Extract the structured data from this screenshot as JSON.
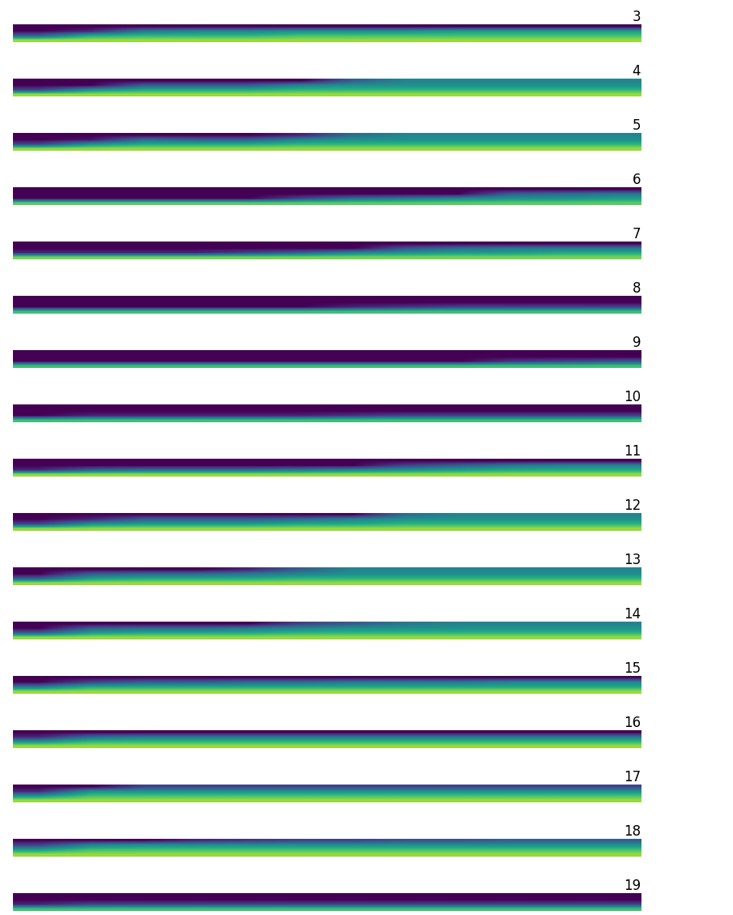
{
  "chart_data": [
    {
      "type": "heatmap",
      "title": "3",
      "tick_labels": false,
      "clim": [
        0,
        1
      ],
      "cells": [
        [
          0,
          0,
          0,
          0,
          0,
          0,
          0,
          0,
          0,
          0,
          0,
          0
        ],
        [
          0,
          0.1,
          0.4,
          0.45,
          0.45,
          0.5,
          0.5,
          0.5,
          0.55,
          0.55,
          0.55,
          0.55
        ],
        [
          0.3,
          0.6,
          0.65,
          0.65,
          0.65,
          0.7,
          0.7,
          0.7,
          0.7,
          0.7,
          0.7,
          0.7
        ],
        [
          0.85,
          0.85,
          0.85,
          0.85,
          0.85,
          0.85,
          0.85,
          0.85,
          0.85,
          0.85,
          0.85,
          0.85
        ]
      ]
    },
    {
      "type": "heatmap",
      "title": "4",
      "tick_labels": false,
      "clim": [
        0,
        1
      ],
      "cells": [
        [
          0,
          0,
          0,
          0,
          0,
          0,
          0.3,
          0.45,
          0.45,
          0.45,
          0.45,
          0.45
        ],
        [
          0,
          0,
          0.3,
          0.3,
          0.3,
          0.45,
          0.5,
          0.5,
          0.5,
          0.5,
          0.5,
          0.5
        ],
        [
          0.2,
          0.5,
          0.6,
          0.6,
          0.6,
          0.65,
          0.65,
          0.65,
          0.65,
          0.65,
          0.65,
          0.65
        ],
        [
          0.85,
          0.85,
          0.85,
          0.85,
          0.85,
          0.85,
          0.85,
          0.85,
          0.85,
          0.85,
          0.85,
          0.85
        ]
      ]
    },
    {
      "type": "heatmap",
      "title": "5",
      "tick_labels": false,
      "clim": [
        0,
        1
      ],
      "cells": [
        [
          0,
          0,
          0,
          0,
          0,
          0.1,
          0.35,
          0.45,
          0.45,
          0.45,
          0.45,
          0.45
        ],
        [
          0,
          0.05,
          0.35,
          0.3,
          0.3,
          0.45,
          0.5,
          0.5,
          0.5,
          0.5,
          0.5,
          0.5
        ],
        [
          0.2,
          0.5,
          0.6,
          0.6,
          0.6,
          0.65,
          0.65,
          0.65,
          0.65,
          0.65,
          0.65,
          0.65
        ],
        [
          0.85,
          0.85,
          0.85,
          0.85,
          0.85,
          0.85,
          0.85,
          0.85,
          0.85,
          0.85,
          0.85,
          0.85
        ]
      ]
    },
    {
      "type": "heatmap",
      "title": "6",
      "tick_labels": false,
      "clim": [
        0,
        1
      ],
      "cells": [
        [
          0,
          0,
          0,
          0,
          0,
          0,
          0,
          0,
          0,
          0,
          0,
          0
        ],
        [
          0,
          0,
          0,
          0,
          0,
          0,
          0,
          0,
          0,
          0.3,
          0.35,
          0.4
        ],
        [
          0,
          0,
          0,
          0,
          0,
          0.2,
          0.35,
          0.4,
          0.45,
          0.5,
          0.5,
          0.55
        ],
        [
          0.75,
          0.75,
          0.75,
          0.75,
          0.75,
          0.75,
          0.75,
          0.75,
          0.75,
          0.75,
          0.75,
          0.75
        ]
      ]
    },
    {
      "type": "heatmap",
      "title": "7",
      "tick_labels": false,
      "clim": [
        0,
        1
      ],
      "cells": [
        [
          0,
          0,
          0,
          0,
          0,
          0,
          0,
          0,
          0,
          0,
          0,
          0
        ],
        [
          0,
          0,
          0,
          0,
          0,
          0,
          0,
          0.25,
          0.35,
          0.4,
          0.4,
          0.4
        ],
        [
          0.1,
          0.1,
          0.1,
          0.1,
          0.2,
          0.3,
          0.45,
          0.5,
          0.55,
          0.55,
          0.6,
          0.6
        ],
        [
          0.8,
          0.8,
          0.8,
          0.8,
          0.8,
          0.8,
          0.8,
          0.8,
          0.8,
          0.8,
          0.8,
          0.8
        ]
      ]
    },
    {
      "type": "heatmap",
      "title": "8",
      "tick_labels": false,
      "clim": [
        0,
        1
      ],
      "cells": [
        [
          0,
          0,
          0,
          0,
          0,
          0,
          0,
          0,
          0,
          0,
          0,
          0
        ],
        [
          0,
          0,
          0,
          0,
          0,
          0,
          0,
          0,
          0,
          0,
          0,
          0
        ],
        [
          0,
          0,
          0,
          0,
          0,
          0,
          0.1,
          0.15,
          0.2,
          0.2,
          0.2,
          0.2
        ],
        [
          0.7,
          0.7,
          0.7,
          0.7,
          0.7,
          0.7,
          0.7,
          0.7,
          0.7,
          0.7,
          0.7,
          0.7
        ]
      ]
    },
    {
      "type": "heatmap",
      "title": "9",
      "tick_labels": false,
      "clim": [
        0,
        1
      ],
      "cells": [
        [
          0,
          0,
          0,
          0,
          0,
          0,
          0,
          0,
          0,
          0,
          0,
          0
        ],
        [
          0,
          0,
          0,
          0,
          0,
          0,
          0,
          0,
          0,
          0,
          0,
          0
        ],
        [
          0,
          0,
          0,
          0,
          0,
          0,
          0,
          0,
          0,
          0.15,
          0.2,
          0.25
        ],
        [
          0.7,
          0.7,
          0.7,
          0.7,
          0.7,
          0.7,
          0.7,
          0.7,
          0.7,
          0.7,
          0.7,
          0.7
        ]
      ]
    },
    {
      "type": "heatmap",
      "title": "10",
      "tick_labels": false,
      "clim": [
        0,
        1
      ],
      "cells": [
        [
          0,
          0,
          0,
          0,
          0,
          0,
          0,
          0,
          0,
          0,
          0,
          0
        ],
        [
          0,
          0,
          0,
          0,
          0,
          0,
          0,
          0,
          0,
          0,
          0,
          0
        ],
        [
          0,
          0.1,
          0.1,
          0.1,
          0.1,
          0.1,
          0.15,
          0.2,
          0.2,
          0.2,
          0.2,
          0.2
        ],
        [
          0.7,
          0.7,
          0.7,
          0.7,
          0.7,
          0.7,
          0.7,
          0.7,
          0.7,
          0.7,
          0.7,
          0.7
        ]
      ]
    },
    {
      "type": "heatmap",
      "title": "11",
      "tick_labels": false,
      "clim": [
        0,
        1
      ],
      "cells": [
        [
          0,
          0,
          0,
          0,
          0,
          0,
          0,
          0,
          0,
          0,
          0,
          0
        ],
        [
          0,
          0,
          0,
          0,
          0,
          0,
          0,
          0.2,
          0.3,
          0.4,
          0.45,
          0.45
        ],
        [
          0.1,
          0.3,
          0.35,
          0.35,
          0.35,
          0.4,
          0.45,
          0.5,
          0.55,
          0.6,
          0.6,
          0.6
        ],
        [
          0.85,
          0.85,
          0.85,
          0.85,
          0.85,
          0.85,
          0.85,
          0.85,
          0.85,
          0.85,
          0.85,
          0.85
        ]
      ]
    },
    {
      "type": "heatmap",
      "title": "12",
      "tick_labels": false,
      "clim": [
        0,
        1
      ],
      "cells": [
        [
          0,
          0,
          0,
          0,
          0,
          0,
          0,
          0.35,
          0.45,
          0.45,
          0.45,
          0.45
        ],
        [
          0,
          0.1,
          0.3,
          0.3,
          0.3,
          0.35,
          0.45,
          0.5,
          0.5,
          0.5,
          0.5,
          0.5
        ],
        [
          0.2,
          0.5,
          0.55,
          0.55,
          0.55,
          0.6,
          0.6,
          0.65,
          0.65,
          0.65,
          0.65,
          0.65
        ],
        [
          0.85,
          0.85,
          0.85,
          0.85,
          0.85,
          0.85,
          0.85,
          0.85,
          0.85,
          0.85,
          0.85,
          0.85
        ]
      ]
    },
    {
      "type": "heatmap",
      "title": "13",
      "tick_labels": false,
      "clim": [
        0,
        1
      ],
      "cells": [
        [
          0,
          0,
          0,
          0,
          0.1,
          0.3,
          0.45,
          0.45,
          0.45,
          0.45,
          0.45,
          0.45
        ],
        [
          0,
          0.3,
          0.35,
          0.35,
          0.4,
          0.45,
          0.5,
          0.5,
          0.5,
          0.5,
          0.5,
          0.5
        ],
        [
          0.3,
          0.55,
          0.6,
          0.6,
          0.6,
          0.65,
          0.65,
          0.65,
          0.65,
          0.65,
          0.65,
          0.65
        ],
        [
          0.85,
          0.85,
          0.85,
          0.85,
          0.85,
          0.85,
          0.85,
          0.85,
          0.85,
          0.85,
          0.85,
          0.85
        ]
      ]
    },
    {
      "type": "heatmap",
      "title": "14",
      "tick_labels": false,
      "clim": [
        0,
        1
      ],
      "cells": [
        [
          0,
          0,
          0,
          0,
          0,
          0.2,
          0.3,
          0.4,
          0.45,
          0.45,
          0.45,
          0.45
        ],
        [
          0,
          0.3,
          0.35,
          0.35,
          0.4,
          0.45,
          0.5,
          0.5,
          0.5,
          0.5,
          0.5,
          0.5
        ],
        [
          0.3,
          0.55,
          0.6,
          0.6,
          0.6,
          0.65,
          0.65,
          0.65,
          0.65,
          0.65,
          0.65,
          0.65
        ],
        [
          0.85,
          0.85,
          0.85,
          0.85,
          0.85,
          0.85,
          0.85,
          0.85,
          0.85,
          0.85,
          0.85,
          0.85
        ]
      ]
    },
    {
      "type": "heatmap",
      "title": "15",
      "tick_labels": false,
      "clim": [
        0,
        1
      ],
      "cells": [
        [
          0,
          0,
          0,
          0,
          0,
          0,
          0,
          0,
          0,
          0,
          0,
          0
        ],
        [
          0,
          0.2,
          0.3,
          0.3,
          0.35,
          0.35,
          0.4,
          0.4,
          0.4,
          0.45,
          0.45,
          0.45
        ],
        [
          0.4,
          0.6,
          0.6,
          0.6,
          0.6,
          0.6,
          0.6,
          0.6,
          0.6,
          0.6,
          0.6,
          0.6
        ],
        [
          0.85,
          0.85,
          0.85,
          0.85,
          0.85,
          0.85,
          0.85,
          0.85,
          0.85,
          0.85,
          0.85,
          0.85
        ]
      ]
    },
    {
      "type": "heatmap",
      "title": "16",
      "tick_labels": false,
      "clim": [
        0,
        1
      ],
      "cells": [
        [
          0,
          0,
          0,
          0,
          0,
          0,
          0,
          0,
          0,
          0,
          0,
          0
        ],
        [
          0.1,
          0.35,
          0.4,
          0.4,
          0.4,
          0.4,
          0.4,
          0.4,
          0.4,
          0.4,
          0.4,
          0.4
        ],
        [
          0.5,
          0.65,
          0.65,
          0.65,
          0.65,
          0.65,
          0.65,
          0.65,
          0.65,
          0.65,
          0.65,
          0.65
        ],
        [
          0.85,
          0.85,
          0.85,
          0.85,
          0.85,
          0.85,
          0.85,
          0.85,
          0.85,
          0.85,
          0.85,
          0.85
        ]
      ]
    },
    {
      "type": "heatmap",
      "title": "17",
      "tick_labels": false,
      "clim": [
        0,
        1
      ],
      "cells": [
        [
          0,
          0,
          0.2,
          0.2,
          0.2,
          0.2,
          0.2,
          0.2,
          0.2,
          0.2,
          0.2,
          0.2
        ],
        [
          0.1,
          0.5,
          0.5,
          0.5,
          0.5,
          0.5,
          0.5,
          0.5,
          0.5,
          0.5,
          0.5,
          0.5
        ],
        [
          0.5,
          0.7,
          0.7,
          0.7,
          0.7,
          0.7,
          0.7,
          0.7,
          0.7,
          0.7,
          0.7,
          0.7
        ],
        [
          0.85,
          0.85,
          0.85,
          0.85,
          0.85,
          0.85,
          0.85,
          0.85,
          0.85,
          0.85,
          0.85,
          0.85
        ]
      ]
    },
    {
      "type": "heatmap",
      "title": "18",
      "tick_labels": false,
      "clim": [
        0,
        1
      ],
      "cells": [
        [
          0,
          0,
          0,
          0.1,
          0.15,
          0.2,
          0.2,
          0.25,
          0.25,
          0.3,
          0.3,
          0.3
        ],
        [
          0.2,
          0.45,
          0.5,
          0.5,
          0.5,
          0.5,
          0.5,
          0.5,
          0.5,
          0.5,
          0.5,
          0.5
        ],
        [
          0.55,
          0.7,
          0.7,
          0.7,
          0.7,
          0.7,
          0.7,
          0.7,
          0.7,
          0.7,
          0.7,
          0.7
        ],
        [
          0.85,
          0.85,
          0.85,
          0.85,
          0.85,
          0.85,
          0.85,
          0.85,
          0.85,
          0.85,
          0.85,
          0.85
        ]
      ]
    },
    {
      "type": "heatmap",
      "title": "19",
      "tick_labels": false,
      "clim": [
        0,
        1
      ],
      "cells": [
        [
          0,
          0,
          0,
          0,
          0,
          0,
          0,
          0,
          0,
          0,
          0,
          0
        ],
        [
          0,
          0,
          0,
          0,
          0,
          0,
          0,
          0,
          0,
          0,
          0,
          0
        ],
        [
          0.1,
          0.2,
          0.2,
          0.2,
          0.2,
          0.2,
          0.2,
          0.2,
          0.2,
          0.2,
          0.2,
          0.2
        ],
        [
          0.7,
          0.7,
          0.7,
          0.7,
          0.7,
          0.7,
          0.7,
          0.7,
          0.7,
          0.7,
          0.7,
          0.7
        ]
      ]
    }
  ]
}
